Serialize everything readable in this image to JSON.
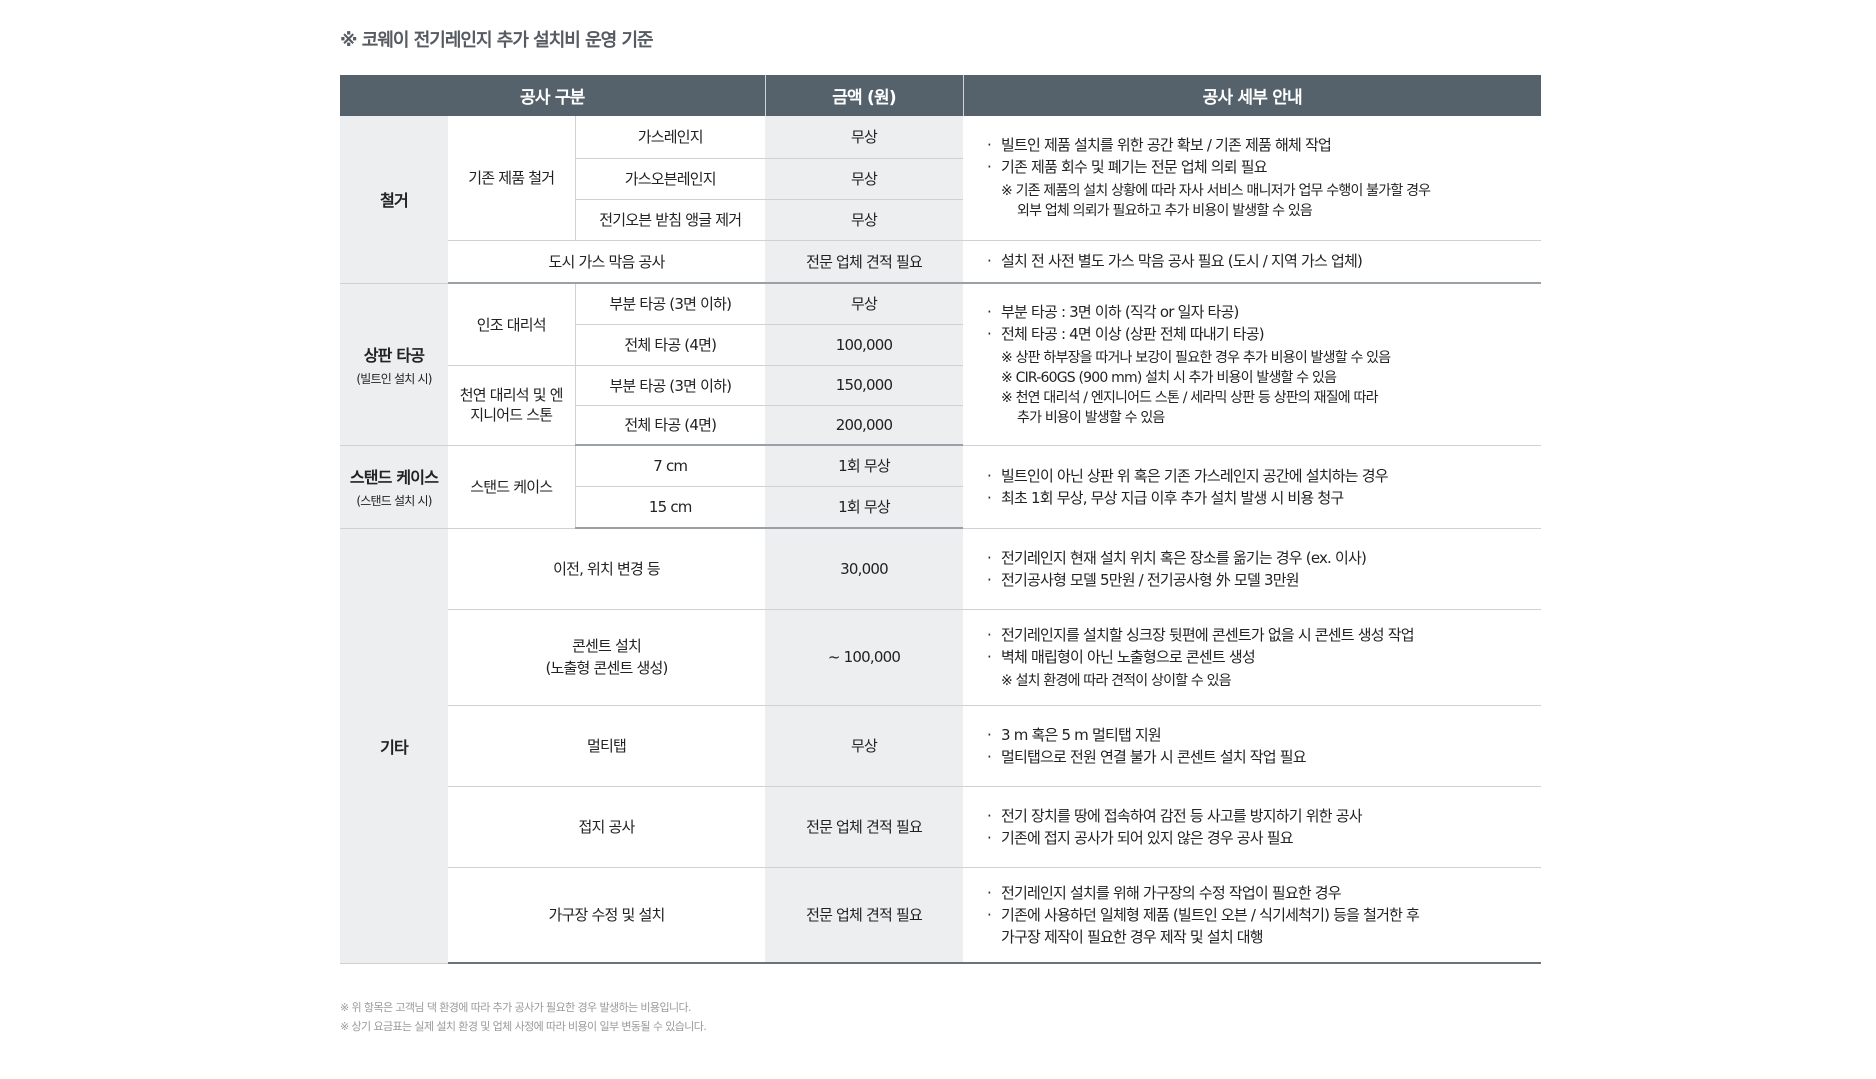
{
  "title": "※ 코웨이 전기레인지 추가 설치비 운영 기준",
  "header": {
    "category": "공사 구분",
    "price": "금액 (원)",
    "detail": "공사 세부 안내"
  },
  "removal": {
    "label": "철거",
    "existing_label": "기존 제품 철거",
    "items": [
      {
        "name": "가스레인지",
        "price": "무상"
      },
      {
        "name": "가스오븐레인지",
        "price": "무상"
      },
      {
        "name": "전기오븐 받침 앵글 제거",
        "price": "무상"
      }
    ],
    "existing_details": [
      "빌트인 제품 설치를 위한 공간 확보 / 기존 제품 해체 작업",
      "기존 제품 회수 및 폐기는 전문 업체 의뢰 필요",
      "※ 기존 제품의 설치 상황에 따라 자사 서비스 매니저가 업무 수행이 불가할 경우",
      "외부 업체 의뢰가 필요하고 추가 비용이 발생할 수 있음"
    ],
    "gas": {
      "name": "도시 가스 막음 공사",
      "price": "전문 업체 견적 필요",
      "detail": "설치 전 사전 별도 가스 막음 공사 필요 (도시 / 지역 가스 업체)"
    }
  },
  "countertop": {
    "label": "상판 타공",
    "sub": "(빌트인 설치 시)",
    "artificial_label": "인조 대리석",
    "natural_label": "천연 대리석 및 엔지니어드 스톤",
    "items": [
      {
        "name": "부분 타공 (3면 이하)",
        "price": "무상"
      },
      {
        "name": "전체 타공 (4면)",
        "price": "100,000"
      },
      {
        "name": "부분 타공 (3면 이하)",
        "price": "150,000"
      },
      {
        "name": "전체 타공 (4면)",
        "price": "200,000"
      }
    ],
    "details": [
      "부분 타공 : 3면 이하 (직각 or 일자 타공)",
      "전체 타공 : 4면 이상 (상판 전체 따내기 타공)",
      "※ 상판 하부장을 따거나 보강이 필요한 경우 추가 비용이 발생할 수 있음",
      "※ CIR-60GS (900 mm) 설치 시 추가 비용이 발생할 수 있음",
      "※ 천연 대리석 / 엔지니어드 스톤 / 세라믹 상판 등 상판의 재질에 따라",
      "추가 비용이 발생할 수 있음"
    ]
  },
  "stand": {
    "label": "스탠드 케이스",
    "sub": "(스탠드 설치 시)",
    "group_label": "스탠드 케이스",
    "items": [
      {
        "name": "7 cm",
        "price": "1회 무상"
      },
      {
        "name": "15 cm",
        "price": "1회 무상"
      }
    ],
    "details": [
      "빌트인이 아닌 상판 위 혹은 기존 가스레인지 공간에 설치하는 경우",
      "최초 1회 무상, 무상 지급 이후 추가 설치 발생 시 비용 청구"
    ]
  },
  "other": {
    "label": "기타",
    "items": [
      {
        "name": "이전, 위치 변경 등",
        "price": "30,000",
        "details": [
          "전기레인지 현재 설치 위치 혹은 장소를 옮기는 경우 (ex. 이사)",
          "전기공사형 모델 5만원 / 전기공사형 外 모델 3만원"
        ]
      },
      {
        "name": "콘센트 설치",
        "name2": "(노출형 콘센트 생성)",
        "price": "~ 100,000",
        "details": [
          "전기레인지를 설치할 싱크장 뒷편에 콘센트가 없을 시 콘센트 생성 작업",
          "벽체 매립형이 아닌 노출형으로 콘센트 생성",
          "※ 설치 환경에 따라 견적이 상이할 수 있음"
        ]
      },
      {
        "name": "멀티탭",
        "price": "무상",
        "details": [
          "3 m 혹은 5 m 멀티탭 지원",
          "멀티탭으로 전원 연결 불가 시 콘센트 설치 작업 필요"
        ]
      },
      {
        "name": "접지 공사",
        "price": "전문 업체 견적 필요",
        "details": [
          "전기 장치를 땅에 접속하여 감전 등 사고를 방지하기 위한 공사",
          "기존에 접지 공사가 되어 있지 않은 경우 공사 필요"
        ]
      },
      {
        "name": "가구장 수정 및 설치",
        "price": "전문 업체 견적 필요",
        "details": [
          "전기레인지 설치를 위해 가구장의 수정 작업이 필요한 경우",
          "기존에 사용하던 일체형 제품 (빌트인 오븐 / 식기세척기) 등을 철거한 후",
          "가구장 제작이 필요한 경우 제작 및 설치 대행"
        ]
      }
    ]
  },
  "footnotes": [
    "※ 위 항목은 고객님 댁 환경에 따라 추가 공사가 필요한 경우 발생하는 비용입니다.",
    "※ 상기 요금표는 실제 설치 환경 및 업체 사정에 따라 비용이 일부 변동될 수 있습니다."
  ],
  "colors": {
    "header_bg": "#55626b",
    "shaded_bg": "#eceef0",
    "title": "#555b61"
  }
}
